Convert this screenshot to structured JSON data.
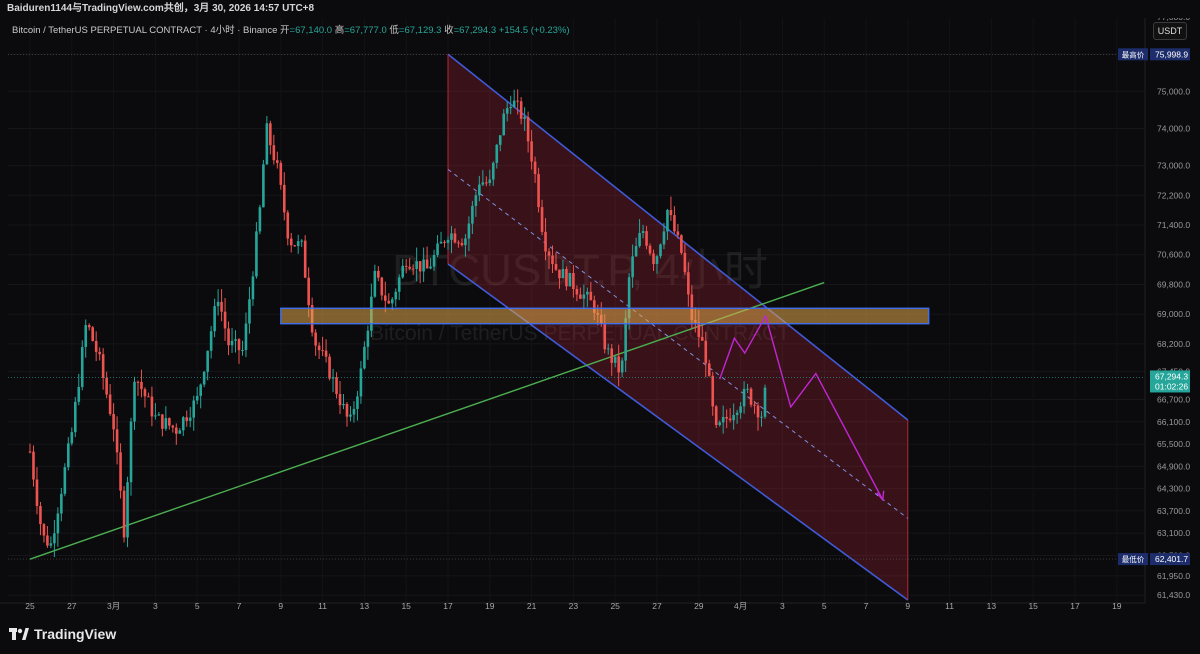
{
  "top_bar": {
    "text": "Baiduren1144与TradingView.com共创，3月 30, 2026 14:57 UTC+8"
  },
  "header": {
    "symbol": "Bitcoin / TetherUS PERPETUAL CONTRACT · 4小时 · Binance",
    "open_label": "开",
    "open_value": "=67,140.0",
    "high_label": "高",
    "high_value": "=67,777.0",
    "low_label": "低",
    "low_value": "=67,129.3",
    "close_label": "收",
    "close_value": "=67,294.3",
    "change": "+154.5 (+0.23%)"
  },
  "currency_button": "USDT",
  "watermark": {
    "line1": "BTCUSDT.P, 4小时",
    "line2": "Bitcoin / TetherUS PERPETUAL CONTRACT"
  },
  "footer": {
    "brand": "TradingView"
  },
  "colors": {
    "up": "#26a69a",
    "down": "#ef5350",
    "channel": "#3f5bd8",
    "trendline": "#4caf50",
    "projection": "#c026d3",
    "background": "#0b0b0d"
  },
  "chart_data": {
    "type": "candlestick",
    "timeframe": "4小时",
    "ylim": [
      61300,
      77300
    ],
    "y_ticks": [
      "77,000.0",
      "76,000.0",
      "75,000.0",
      "74,000.0",
      "73,000.0",
      "72,200.0",
      "71,400.0",
      "70,600.0",
      "69,800.0",
      "69,000.0",
      "68,200.0",
      "67,450.0",
      "66,700.0",
      "66,100.0",
      "65,500.0",
      "64,900.0",
      "64,300.0",
      "63,700.0",
      "63,100.0",
      "62,500.0",
      "61,950.0",
      "61,430.0"
    ],
    "x_ticks": [
      "25",
      "27",
      "3月",
      "3",
      "5",
      "7",
      "9",
      "11",
      "13",
      "15",
      "17",
      "19",
      "21",
      "23",
      "25",
      "27",
      "29",
      "4月",
      "3",
      "5",
      "7",
      "9",
      "11",
      "13",
      "15",
      "17",
      "19"
    ],
    "price_labels": [
      {
        "name": "最高价",
        "value": "75,998.9"
      },
      {
        "name": "last",
        "value": "67,294.3",
        "sub": "01:02:26"
      },
      {
        "name": "最低价",
        "value": "62,401.7"
      }
    ],
    "anchors": [
      {
        "d": 0.0,
        "p": 65300
      },
      {
        "d": 0.6,
        "p": 63000
      },
      {
        "d": 1.0,
        "p": 62800
      },
      {
        "d": 2.0,
        "p": 65800
      },
      {
        "d": 2.7,
        "p": 68800
      },
      {
        "d": 3.3,
        "p": 67800
      },
      {
        "d": 4.0,
        "p": 66000
      },
      {
        "d": 4.5,
        "p": 63200
      },
      {
        "d": 5.0,
        "p": 67400
      },
      {
        "d": 6.0,
        "p": 66200
      },
      {
        "d": 7.0,
        "p": 65900
      },
      {
        "d": 8.0,
        "p": 66700
      },
      {
        "d": 9.0,
        "p": 69500
      },
      {
        "d": 9.5,
        "p": 68200
      },
      {
        "d": 10.2,
        "p": 68000
      },
      {
        "d": 11.0,
        "p": 71800
      },
      {
        "d": 11.3,
        "p": 74000
      },
      {
        "d": 11.8,
        "p": 73000
      },
      {
        "d": 12.4,
        "p": 71000
      },
      {
        "d": 13.0,
        "p": 70800
      },
      {
        "d": 13.6,
        "p": 68300
      },
      {
        "d": 14.3,
        "p": 67500
      },
      {
        "d": 15.3,
        "p": 66000
      },
      {
        "d": 15.8,
        "p": 67300
      },
      {
        "d": 16.5,
        "p": 70000
      },
      {
        "d": 17.2,
        "p": 69200
      },
      {
        "d": 18.0,
        "p": 70500
      },
      {
        "d": 19.0,
        "p": 70200
      },
      {
        "d": 20.0,
        "p": 71200
      },
      {
        "d": 20.8,
        "p": 71000
      },
      {
        "d": 21.5,
        "p": 72600
      },
      {
        "d": 22.0,
        "p": 72500
      },
      {
        "d": 22.6,
        "p": 74200
      },
      {
        "d": 23.0,
        "p": 74800
      },
      {
        "d": 23.6,
        "p": 74300
      },
      {
        "d": 24.1,
        "p": 73000
      },
      {
        "d": 24.6,
        "p": 71000
      },
      {
        "d": 25.2,
        "p": 70200
      },
      {
        "d": 26.0,
        "p": 69800
      },
      {
        "d": 27.0,
        "p": 69200
      },
      {
        "d": 27.6,
        "p": 68000
      },
      {
        "d": 28.3,
        "p": 67400
      },
      {
        "d": 28.7,
        "p": 70200
      },
      {
        "d": 29.3,
        "p": 71300
      },
      {
        "d": 29.9,
        "p": 70400
      },
      {
        "d": 30.5,
        "p": 71800
      },
      {
        "d": 31.2,
        "p": 70600
      },
      {
        "d": 31.6,
        "p": 69000
      },
      {
        "d": 32.3,
        "p": 68000
      },
      {
        "d": 32.8,
        "p": 65800
      },
      {
        "d": 33.6,
        "p": 66400
      },
      {
        "d": 34.3,
        "p": 66900
      },
      {
        "d": 35.0,
        "p": 66300
      },
      {
        "d": 35.3,
        "p": 67294
      }
    ],
    "channel": {
      "upper": [
        {
          "date": "3/17",
          "price": 76000
        },
        {
          "date": "4/8",
          "price": 66150
        }
      ],
      "lower": [
        {
          "date": "3/17",
          "price": 70350
        },
        {
          "date": "4/8",
          "price": 61300
        }
      ],
      "mid": [
        {
          "date": "3/17",
          "price": 72900
        },
        {
          "date": "4/8",
          "price": 63500
        }
      ]
    },
    "resistance_zone": {
      "from": "3/9",
      "to": "4/9",
      "price_low": 68850,
      "price_high": 69050
    },
    "trendline": [
      {
        "date": "2/25",
        "price": 62400
      },
      {
        "date": "4/4",
        "price": 69850
      }
    ],
    "projection_path": [
      {
        "date": "3/30",
        "price": 67250
      },
      {
        "date": "3/30.7",
        "price": 68350
      },
      {
        "date": "3/31.2",
        "price": 67950
      },
      {
        "date": "4/1.2",
        "price": 68950
      },
      {
        "date": "4/2.4",
        "price": 66500
      },
      {
        "date": "4/3.6",
        "price": 67400
      },
      {
        "date": "4/6.8",
        "price": 64000
      }
    ]
  }
}
